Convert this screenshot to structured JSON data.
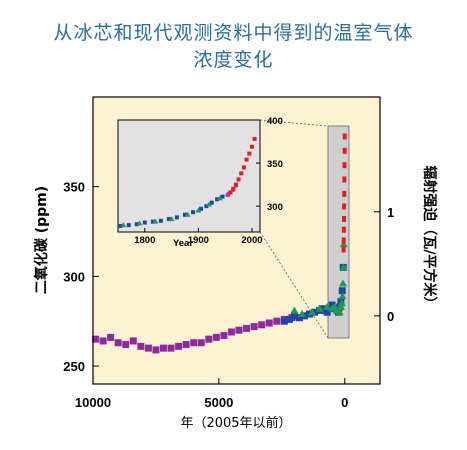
{
  "title_line1": "从冰芯和现代观测资料中得到的温室气体",
  "title_line2": "浓度变化",
  "colors": {
    "plot_bg": "#fdf3d3",
    "inset_bg": "#e2e2e2",
    "purple": "#8e2a9e",
    "blue": "#2244aa",
    "green": "#1f9a52",
    "teal": "#1a8a8a",
    "red": "#e02020",
    "magenta": "#d030b0"
  },
  "chart_data": {
    "type": "scatter",
    "xlabel": "年（2005年以前）",
    "ylabel": "二氧化碳 (ppm)",
    "y2label": "辐射强迫（瓦/平方米）",
    "x_reversed": true,
    "xlim": [
      10000,
      -1400
    ],
    "ylim": [
      240,
      400
    ],
    "xticks": [
      "10000",
      "5000",
      "0"
    ],
    "yticks": [
      "250",
      "300",
      "350"
    ],
    "y2ticks": [
      "0",
      "1"
    ],
    "series": [
      {
        "color": "purple",
        "x": [
          9900,
          9600,
          9300,
          9000,
          8700,
          8400,
          8100,
          7800,
          7500,
          7200,
          6900,
          6600,
          6300,
          6000,
          5700,
          5400,
          5100,
          4800,
          4500,
          4200,
          3900,
          3600,
          3300,
          3000,
          2700,
          2400,
          2100,
          1800
        ],
        "y": [
          265,
          264,
          266,
          263,
          262,
          264,
          261,
          260,
          259,
          260,
          260,
          261,
          262,
          263,
          263,
          265,
          266,
          267,
          269,
          270,
          271,
          272,
          273,
          274,
          275,
          276,
          277,
          277
        ]
      },
      {
        "color": "blue",
        "x": [
          2400,
          2200,
          2000,
          1800,
          1600,
          1400,
          1200,
          1000,
          900,
          800,
          700,
          600,
          500,
          400,
          300,
          250,
          200,
          150,
          100,
          60
        ],
        "y": [
          275,
          276,
          278,
          277,
          278,
          279,
          280,
          281,
          282,
          281,
          280,
          282,
          284,
          282,
          281,
          280,
          283,
          286,
          292,
          305
        ]
      },
      {
        "color": "green",
        "x": [
          2000,
          1700,
          1300,
          1000,
          700,
          500,
          400,
          300,
          200,
          150,
          120,
          90,
          70,
          50,
          40
        ],
        "y": [
          281,
          279,
          280,
          282,
          283,
          282,
          283,
          281,
          280,
          283,
          285,
          289,
          296,
          305,
          318
        ]
      },
      {
        "color": "red",
        "x": [
          45,
          40,
          35,
          30,
          25,
          20,
          15,
          10,
          5,
          1
        ],
        "y": [
          315,
          320,
          326,
          332,
          339,
          346,
          354,
          362,
          370,
          378
        ]
      }
    ],
    "inset": {
      "xticks": [
        "1800",
        "1900",
        "2000"
      ],
      "yticks": [
        "300",
        "350",
        "400"
      ],
      "xlabel": "Year",
      "xlim": [
        1750,
        2015
      ],
      "ylim": [
        270,
        400
      ],
      "series": [
        {
          "color": "blue",
          "x": [
            1755,
            1770,
            1785,
            1800,
            1815,
            1830,
            1845,
            1860,
            1875,
            1890,
            1905,
            1915,
            1925,
            1935,
            1945
          ],
          "y": [
            277,
            278,
            279,
            281,
            282,
            283,
            285,
            287,
            290,
            293,
            297,
            300,
            304,
            308,
            311
          ]
        },
        {
          "color": "green",
          "x": [
            1760,
            1790,
            1820,
            1850,
            1880,
            1900,
            1920,
            1940,
            1955
          ],
          "y": [
            278,
            280,
            282,
            285,
            290,
            295,
            302,
            309,
            314
          ]
        },
        {
          "color": "magenta",
          "x": [
            1955,
            1960,
            1965,
            1970
          ],
          "y": [
            313,
            316,
            319,
            324
          ]
        },
        {
          "color": "red",
          "x": [
            1960,
            1965,
            1970,
            1975,
            1980,
            1985,
            1990,
            1995,
            2000,
            2005
          ],
          "y": [
            316,
            320,
            325,
            331,
            338,
            345,
            354,
            361,
            369,
            378
          ]
        }
      ]
    }
  }
}
